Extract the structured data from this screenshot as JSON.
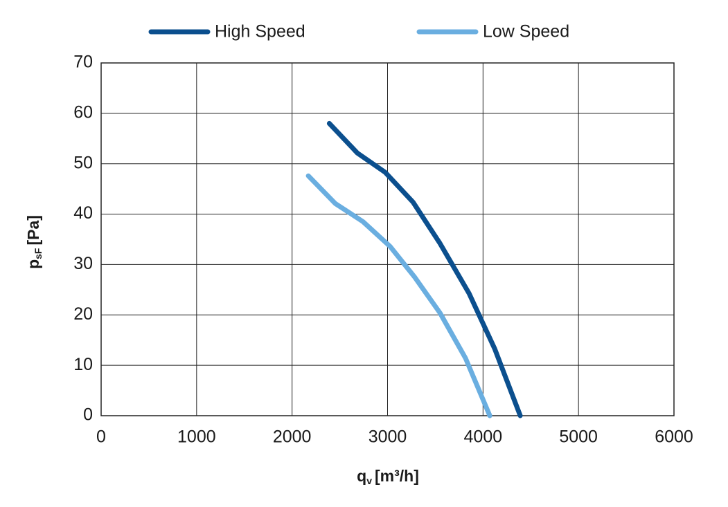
{
  "chart_data": {
    "type": "line",
    "x_label": {
      "main": "q",
      "sub": "v",
      "unit": "[m³/h]"
    },
    "y_label": {
      "main": "p",
      "sub": "sF",
      "unit": "[Pa]"
    },
    "series": [
      {
        "name": "High Speed",
        "color": "#0b4f8e",
        "x": [
          2390,
          2685,
          2975,
          3266,
          3549,
          3853,
          4122,
          4390
        ],
        "values": [
          58,
          52.1,
          48.3,
          42.4,
          34.2,
          24.3,
          13.3,
          0
        ]
      },
      {
        "name": "Low Speed",
        "color": "#6aaee0",
        "x": [
          2170,
          2453,
          2743,
          3026,
          3280,
          3549,
          3817,
          4071
        ],
        "values": [
          47.6,
          42.1,
          38.5,
          33.6,
          27.6,
          20.4,
          11.4,
          0
        ]
      }
    ],
    "xlim": [
      0,
      6000
    ],
    "xticks": [
      0,
      1000,
      2000,
      3000,
      4000,
      5000,
      6000
    ],
    "ylim": [
      0,
      70
    ],
    "yticks": [
      0,
      10,
      20,
      30,
      40,
      50,
      60,
      70
    ],
    "grid": true,
    "legend": "top"
  }
}
